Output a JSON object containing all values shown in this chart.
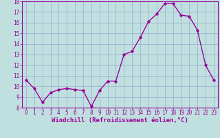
{
  "x": [
    0,
    1,
    2,
    3,
    4,
    5,
    6,
    7,
    8,
    9,
    10,
    11,
    12,
    13,
    14,
    15,
    16,
    17,
    18,
    19,
    20,
    21,
    22,
    23
  ],
  "y": [
    10.6,
    9.8,
    8.5,
    9.4,
    9.7,
    9.8,
    9.7,
    9.6,
    8.1,
    9.6,
    10.5,
    10.5,
    13.0,
    13.3,
    14.6,
    16.1,
    16.8,
    17.8,
    17.8,
    16.7,
    16.6,
    15.3,
    12.0,
    10.6
  ],
  "line_color": "#990099",
  "marker_color": "#990099",
  "bg_color": "#c0e0e0",
  "grid_color": "#99aacc",
  "xlabel": "Windchill (Refroidissement éolien,°C)",
  "ylim": [
    8,
    18
  ],
  "xlim": [
    -0.5,
    23.5
  ],
  "yticks": [
    8,
    9,
    10,
    11,
    12,
    13,
    14,
    15,
    16,
    17,
    18
  ],
  "xticks": [
    0,
    1,
    2,
    3,
    4,
    5,
    6,
    7,
    8,
    9,
    10,
    11,
    12,
    13,
    14,
    15,
    16,
    17,
    18,
    19,
    20,
    21,
    22,
    23
  ],
  "tick_fontsize": 5.5,
  "xlabel_fontsize": 6.5,
  "marker_size": 2.5,
  "line_width": 1.0
}
